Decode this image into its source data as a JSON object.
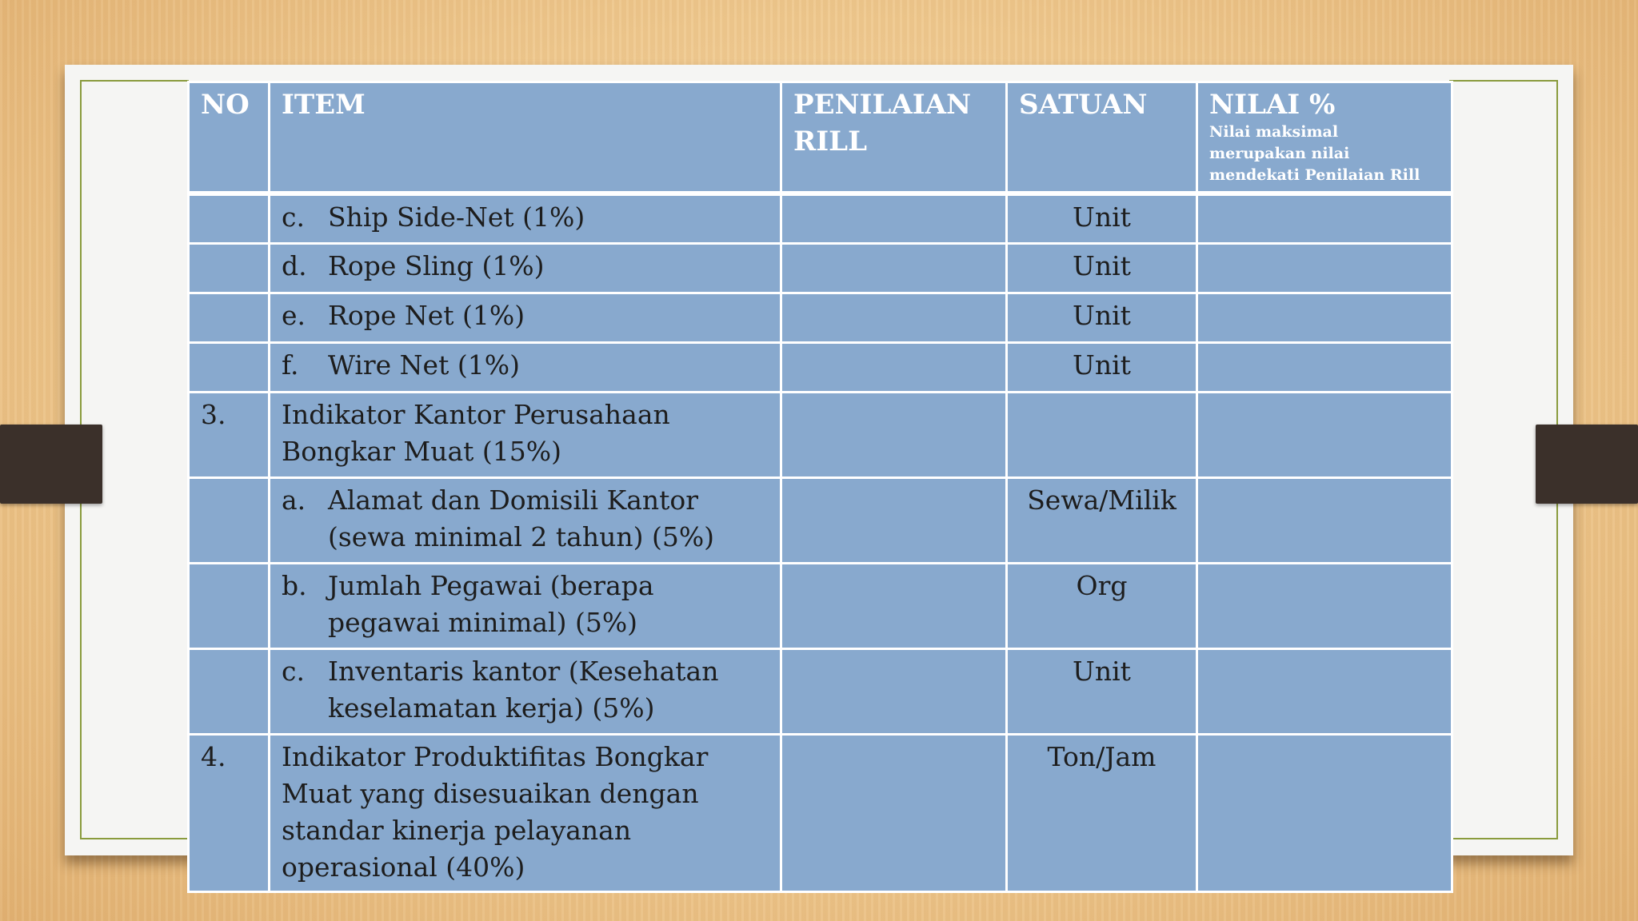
{
  "table": {
    "headers": {
      "no": "NO",
      "item": "ITEM",
      "penilaian": "PENILAIAN RILL",
      "satuan": "SATUAN",
      "nilai": "NILAI %",
      "nilai_note": "Nilai maksimal merupakan nilai mendekati Penilaian Rill"
    },
    "rows": [
      {
        "no": "",
        "letter": "c.",
        "item": "Ship Side-Net (1%)",
        "penilaian": "",
        "satuan": "Unit",
        "nilai": ""
      },
      {
        "no": "",
        "letter": "d.",
        "item": "Rope Sling (1%)",
        "penilaian": "",
        "satuan": "Unit",
        "nilai": ""
      },
      {
        "no": "",
        "letter": "e.",
        "item": "Rope Net (1%)",
        "penilaian": "",
        "satuan": "Unit",
        "nilai": ""
      },
      {
        "no": "",
        "letter": "f.",
        "item": "Wire Net (1%)",
        "penilaian": "",
        "satuan": "Unit",
        "nilai": ""
      },
      {
        "no": "3.",
        "letter": "",
        "item": "Indikator Kantor Perusahaan Bongkar Muat (15%)",
        "penilaian": "",
        "satuan": "",
        "nilai": ""
      },
      {
        "no": "",
        "letter": "a.",
        "item": "Alamat dan Domisili Kantor (sewa minimal 2 tahun) (5%)",
        "penilaian": "",
        "satuan": "Sewa/Milik",
        "nilai": ""
      },
      {
        "no": "",
        "letter": "b.",
        "item": "Jumlah Pegawai (berapa pegawai minimal) (5%)",
        "penilaian": "",
        "satuan": "Org",
        "nilai": ""
      },
      {
        "no": "",
        "letter": "c.",
        "item": "Inventaris kantor (Kesehatan keselamatan kerja) (5%)",
        "penilaian": "",
        "satuan": "Unit",
        "nilai": ""
      },
      {
        "no": "4.",
        "letter": "",
        "item": "Indikator Produktifitas Bongkar Muat yang disesuaikan dengan standar kinerja pelayanan operasional (40%)",
        "penilaian": "",
        "satuan": "Ton/Jam",
        "nilai": ""
      }
    ]
  }
}
